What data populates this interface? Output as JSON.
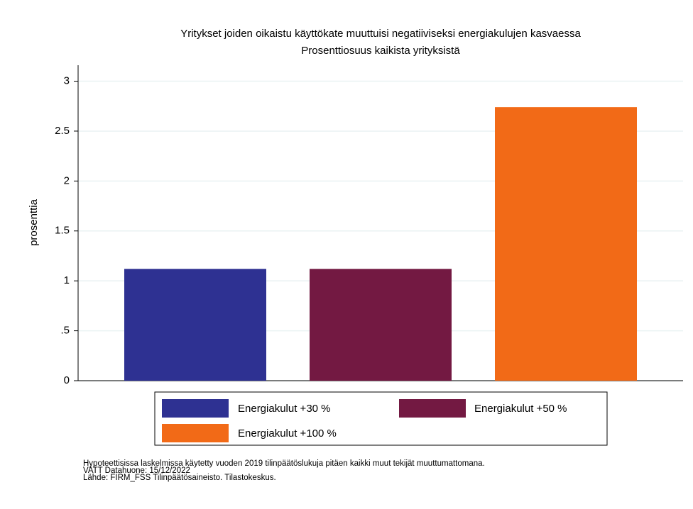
{
  "chart_data": {
    "type": "bar",
    "title": "Yritykset joiden oikaistu käyttökate muuttuisi negatiiviseksi energiakulujen kasvaessa",
    "subtitle": "Prosenttiosuus kaikista yrityksistä",
    "y_label": "prosenttia",
    "series": [
      {
        "name": "Energiakulut +30 %",
        "color": "#2e3192",
        "values": [
          1.12
        ]
      },
      {
        "name": "Energiakulut +50 %",
        "color": "#731942",
        "values": [
          1.12
        ]
      },
      {
        "name": "Energiakulut +100 %",
        "color": "#f26a17",
        "values": [
          2.74
        ]
      }
    ],
    "ylim": [
      0,
      3.16
    ],
    "yticks": [
      0,
      {
        "value": 0.5,
        "label": ".5"
      },
      1,
      1.5,
      2,
      2.5,
      3
    ],
    "grid": true,
    "legend": "bottom",
    "notes": [
      "Hypoteettisissa laskelmissa käytetty vuoden 2019 tilinpäätöslukuja pitäen kaikki muut tekijät muuttumattomana.",
      "VATT Datahuone: 15/12/2022",
      "Lähde: FIRM_FSS Tilinpäätösaineisto. Tilastokeskus."
    ]
  }
}
